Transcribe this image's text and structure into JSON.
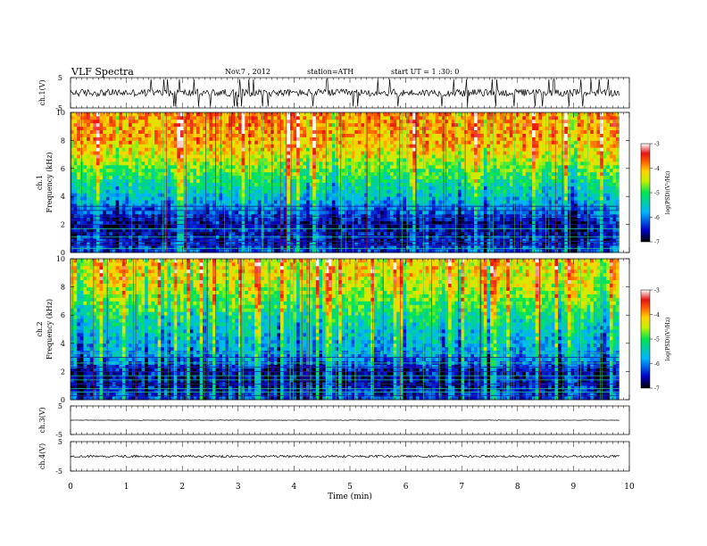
{
  "header": {
    "title": "VLF Spectra",
    "date": "Nov.7 , 2012",
    "station": "station=ATH",
    "start_ut": "start UT = 1 :30: 0"
  },
  "chart_data": [
    {
      "type": "line",
      "panel": "ch1-waveform",
      "ylabel": "ch.1(V)",
      "yticks": [
        "5",
        "-5"
      ],
      "ylim": [
        -5,
        5
      ],
      "xlim": [
        0,
        10
      ],
      "waveform": {
        "baseline": 0.0,
        "noise_amplitude": 1.2,
        "spike_amplitude": 4.5,
        "end_minute": 9.82
      }
    },
    {
      "type": "heatmap",
      "panel": "ch1-spectrogram",
      "ylabel": "Frequency (kHz)",
      "channel": "ch.1",
      "ylim": [
        0,
        10
      ],
      "yticks": [
        "0",
        "2",
        "4",
        "6",
        "8",
        "10"
      ],
      "xlim": [
        0,
        10
      ],
      "data_end_minute": 9.82,
      "colorbar": {
        "label": "log(PSD)(V²/Hz)",
        "ticks": [
          "-3",
          "-4",
          "-5",
          "-6",
          "-7"
        ],
        "range": [
          -7,
          -3
        ]
      },
      "log_psd_profile": {
        "freq_khz": [
          0,
          0.5,
          1,
          2,
          3,
          4,
          5,
          6,
          7,
          8,
          9,
          10
        ],
        "value": [
          -6.2,
          -6.4,
          -6.5,
          -6.6,
          -6.1,
          -5.6,
          -5.2,
          -4.8,
          -4.3,
          -4.0,
          -3.9,
          -3.9
        ]
      }
    },
    {
      "type": "heatmap",
      "panel": "ch2-spectrogram",
      "ylabel": "Frequency (kHz)",
      "channel": "ch.2",
      "ylim": [
        0,
        10
      ],
      "yticks": [
        "0",
        "2",
        "4",
        "6",
        "8",
        "10"
      ],
      "xlim": [
        0,
        10
      ],
      "data_end_minute": 9.82,
      "colorbar": {
        "label": "log(PSD)(V²/Hz)",
        "ticks": [
          "-3",
          "-4",
          "-5",
          "-6",
          "-7"
        ],
        "range": [
          -7,
          -3
        ]
      },
      "log_psd_profile": {
        "freq_khz": [
          0,
          0.5,
          1,
          2,
          3,
          4,
          5,
          6,
          7,
          8,
          9,
          10
        ],
        "value": [
          -6.2,
          -6.4,
          -6.6,
          -6.6,
          -5.9,
          -5.7,
          -5.5,
          -5.2,
          -4.8,
          -4.5,
          -4.3,
          -4.2
        ]
      }
    },
    {
      "type": "line",
      "panel": "ch3-waveform",
      "ylabel": "ch.3(V)",
      "yticks": [
        "5",
        "-5"
      ],
      "ylim": [
        -5,
        5
      ],
      "xlim": [
        0,
        10
      ],
      "waveform": {
        "baseline": 0.0,
        "noise_amplitude": 0.05,
        "spike_amplitude": 0.1,
        "end_minute": 9.82
      }
    },
    {
      "type": "line",
      "panel": "ch4-waveform",
      "ylabel": "ch.4(V)",
      "yticks": [
        "5",
        "-5"
      ],
      "ylim": [
        -5,
        5
      ],
      "xlim": [
        0,
        10
      ],
      "xlabel": "Time (min)",
      "xticks": [
        "0",
        "1",
        "2",
        "3",
        "4",
        "5",
        "6",
        "7",
        "8",
        "9",
        "10"
      ],
      "waveform": {
        "baseline": 0.0,
        "noise_amplitude": 0.35,
        "spike_amplitude": 0.4,
        "end_minute": 9.82
      }
    }
  ]
}
